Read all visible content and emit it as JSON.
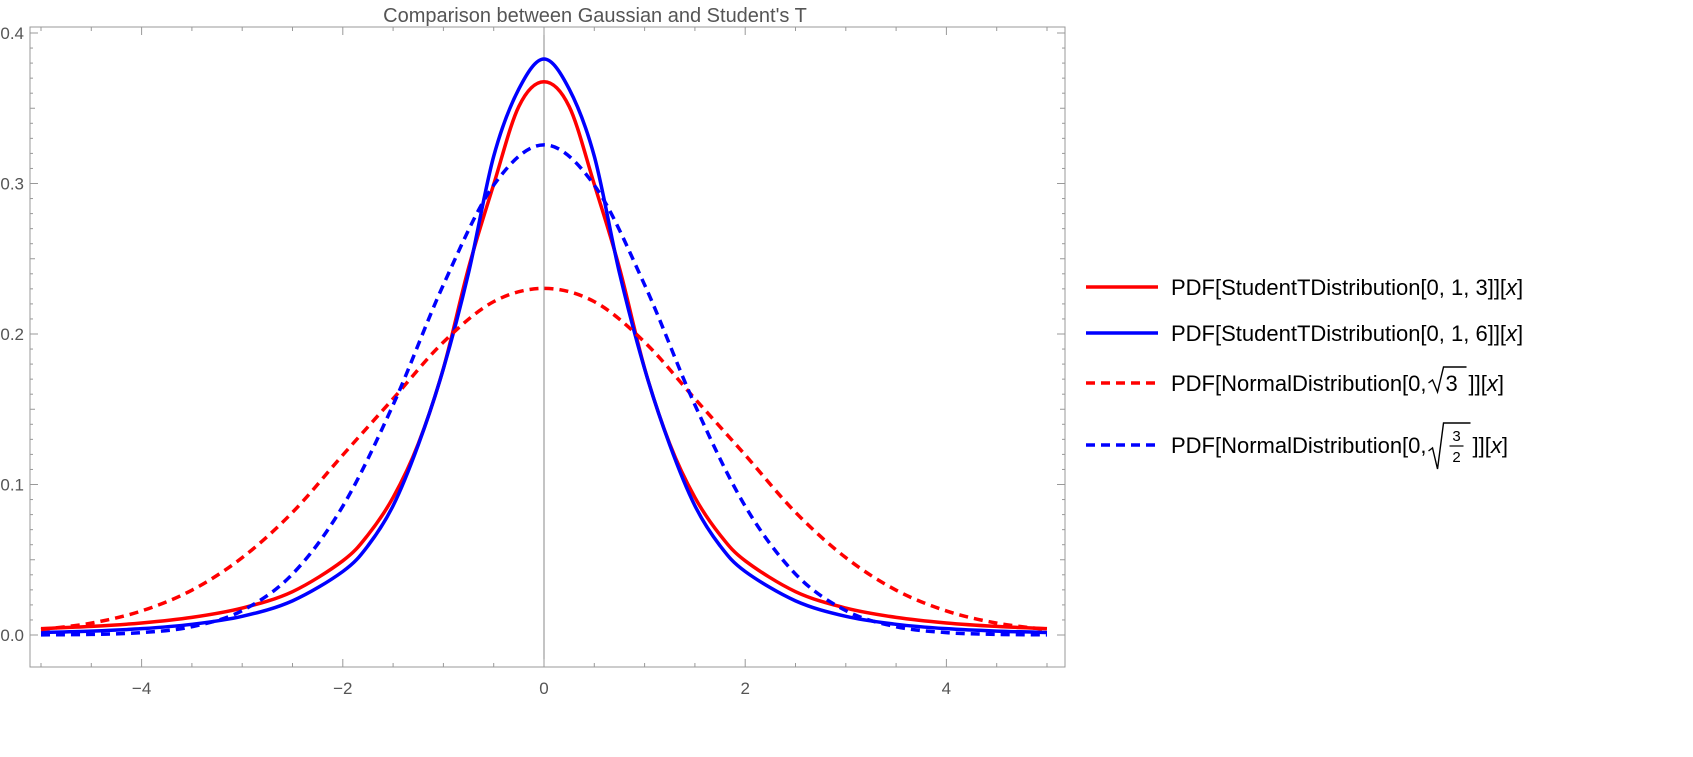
{
  "chart_data": {
    "type": "line",
    "title": "Comparison between Gaussian and Student's T",
    "xlabel": "",
    "ylabel": "",
    "xlim": [
      -5,
      5
    ],
    "ylim": [
      0,
      0.4
    ],
    "x_ticks": [
      -4,
      -2,
      0,
      2,
      4
    ],
    "x_tick_labels": [
      "−4",
      "−2",
      "0",
      "2",
      "4"
    ],
    "y_ticks": [
      0.0,
      0.1,
      0.2,
      0.3,
      0.4
    ],
    "y_tick_labels": [
      "0.0",
      "0.1",
      "0.2",
      "0.3",
      "0.4"
    ],
    "grid": false,
    "legend_position": "right",
    "series": [
      {
        "name": "PDF[StudentTDistribution[0, 1, 3]][x]",
        "color": "#ff0000",
        "style": "solid",
        "x": [
          -5,
          -4.5,
          -4,
          -3.5,
          -3,
          -2.5,
          -2,
          -1.75,
          -1.5,
          -1.25,
          -1,
          -0.75,
          -0.5,
          -0.25,
          0,
          0.25,
          0.5,
          0.75,
          1,
          1.25,
          1.5,
          1.75,
          2,
          2.5,
          3,
          3.5,
          4,
          4.5,
          5
        ],
        "y": [
          0.0042,
          0.0057,
          0.008,
          0.0117,
          0.0179,
          0.0288,
          0.0493,
          0.0665,
          0.0914,
          0.127,
          0.1772,
          0.2439,
          0.2994,
          0.3512,
          0.3676,
          0.3512,
          0.2994,
          0.2439,
          0.1772,
          0.127,
          0.0914,
          0.0665,
          0.0493,
          0.0288,
          0.0179,
          0.0117,
          0.008,
          0.0057,
          0.0042
        ]
      },
      {
        "name": "PDF[StudentTDistribution[0, 1, 6]][x]",
        "color": "#0000ff",
        "style": "solid",
        "x": [
          -5,
          -4.5,
          -4,
          -3.5,
          -3,
          -2.5,
          -2,
          -1.75,
          -1.5,
          -1.25,
          -1,
          -0.75,
          -0.5,
          -0.25,
          0,
          0.25,
          0.5,
          0.75,
          1,
          1.25,
          1.5,
          1.75,
          2,
          2.5,
          3,
          3.5,
          4,
          4.5,
          5
        ],
        "y": [
          0.0017,
          0.0026,
          0.0042,
          0.0071,
          0.0124,
          0.0227,
          0.0422,
          0.0593,
          0.0859,
          0.1263,
          0.1769,
          0.2406,
          0.3181,
          0.3628,
          0.3827,
          0.3628,
          0.3181,
          0.2406,
          0.1769,
          0.1263,
          0.0859,
          0.0593,
          0.0422,
          0.0227,
          0.0124,
          0.0071,
          0.0042,
          0.0026,
          0.0017
        ]
      },
      {
        "name": "PDF[NormalDistribution[0, √3]][x]",
        "color": "#ff0000",
        "style": "dashed",
        "x": [
          -5,
          -4.5,
          -4,
          -3.5,
          -3,
          -2.5,
          -2,
          -1.5,
          -1,
          -0.5,
          0,
          0.5,
          1,
          1.5,
          2,
          2.5,
          3,
          3.5,
          4,
          4.5,
          5
        ],
        "y": [
          0.0036,
          0.0079,
          0.016,
          0.0298,
          0.0514,
          0.0815,
          0.1196,
          0.157,
          0.1946,
          0.2215,
          0.2303,
          0.2215,
          0.1946,
          0.157,
          0.1196,
          0.0815,
          0.0514,
          0.0298,
          0.016,
          0.0079,
          0.0036
        ]
      },
      {
        "name": "PDF[NormalDistribution[0, √(3/2)]][x]",
        "color": "#0000ff",
        "style": "dashed",
        "x": [
          -5,
          -4.5,
          -4,
          -3.5,
          -3,
          -2.5,
          -2,
          -1.5,
          -1,
          -0.5,
          0,
          0.5,
          1,
          1.5,
          2,
          2.5,
          3,
          3.5,
          4,
          4.5,
          5
        ],
        "y": [
          0.0001,
          0.0004,
          0.0016,
          0.0055,
          0.0162,
          0.0405,
          0.0856,
          0.1529,
          0.2327,
          0.2989,
          0.3257,
          0.2989,
          0.2327,
          0.1529,
          0.0856,
          0.0405,
          0.0162,
          0.0055,
          0.0016,
          0.0004,
          0.0001
        ]
      }
    ],
    "legend": [
      {
        "prefix": "PDF[StudentTDistribution[0, 1, 3]][",
        "var": "x",
        "suffix": "]"
      },
      {
        "prefix": "PDF[StudentTDistribution[0, 1, 6]][",
        "var": "x",
        "suffix": "]"
      },
      {
        "prefix": "PDF[NormalDistribution[0, ",
        "radicand": "3",
        "suffix": "]][",
        "var": "x",
        "end": "]"
      },
      {
        "prefix": "PDF[NormalDistribution[0, ",
        "frac_num": "3",
        "frac_den": "2",
        "suffix": "]][",
        "var": "x",
        "end": "]"
      }
    ]
  }
}
